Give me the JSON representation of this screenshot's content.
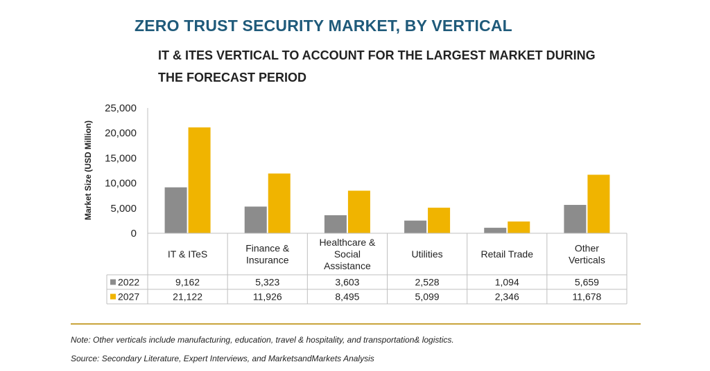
{
  "title": "ZERO TRUST SECURITY MARKET, BY VERTICAL",
  "subtitle": "IT & ITES VERTICAL TO ACCOUNT FOR THE LARGEST MARKET DURING THE FORECAST PERIOD",
  "note": "Note: Other verticals include manufacturing, education, travel & hospitality, and transportation& logistics.",
  "source": "Source: Secondary Literature, Expert Interviews, and MarketsandMarkets Analysis",
  "chart_data": {
    "type": "bar",
    "title": "ZERO TRUST SECURITY MARKET, BY VERTICAL",
    "ylabel": "Market Size (USD Million)",
    "xlabel": "",
    "ylim": [
      0,
      25000
    ],
    "yticks": [
      0,
      5000,
      10000,
      15000,
      20000,
      25000
    ],
    "ytick_labels": [
      "0",
      "5,000",
      "10,000",
      "15,000",
      "20,000",
      "25,000"
    ],
    "grid": false,
    "legend": "data-table-left",
    "categories": [
      "IT & ITeS",
      "Finance & Insurance",
      "Healthcare & Social Assistance",
      "Utilities",
      "Retail Trade",
      "Other Verticals"
    ],
    "category_lines": [
      [
        "IT & ITeS"
      ],
      [
        "Finance &",
        "Insurance"
      ],
      [
        "Healthcare &",
        "Social",
        "Assistance"
      ],
      [
        "Utilities"
      ],
      [
        "Retail Trade"
      ],
      [
        "Other",
        "Verticals"
      ]
    ],
    "series": [
      {
        "name": "2022",
        "color": "#8c8c8c",
        "values": [
          9162,
          5323,
          3603,
          2528,
          1094,
          5659
        ],
        "labels": [
          "9,162",
          "5,323",
          "3,603",
          "2,528",
          "1,094",
          "5,659"
        ]
      },
      {
        "name": "2027",
        "color": "#f0b400",
        "values": [
          21122,
          11926,
          8495,
          5099,
          2346,
          11678
        ],
        "labels": [
          "21,122",
          "11,926",
          "8,495",
          "5,099",
          "2,346",
          "11,678"
        ]
      }
    ]
  }
}
